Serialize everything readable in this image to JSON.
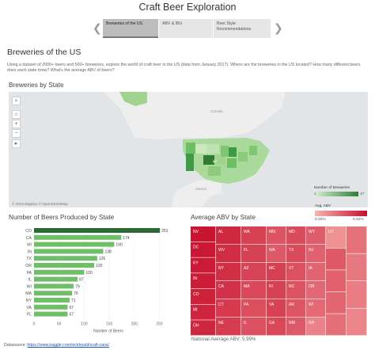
{
  "app": {
    "title": "Craft Beer Exploration"
  },
  "story": {
    "tabs": [
      {
        "label": "Breweries of the US",
        "active": true
      },
      {
        "label": "ABV & IBU",
        "active": false
      },
      {
        "label": "Beer Style Recommendations",
        "active": false
      }
    ]
  },
  "page": {
    "title": "Breweries of the US",
    "description": "Using a dataset of 2000+ beers and 500+ breweries, explore the world of craft beer in the US (data from January 2017). Where are the breweries in the US located? How many different beers does each state brew? What's the average ABV of beers?"
  },
  "map": {
    "title": "Breweries by State",
    "credit": "© 2019 Mapbox © OpenStreetMap",
    "labels": {
      "canada": "Canada",
      "mexico": "Mexico"
    },
    "highlight_value": "47",
    "tools": [
      "search-icon",
      "home-icon",
      "plus-icon",
      "minus-icon",
      "arrow-icon"
    ],
    "legend_breweries": {
      "title": "Number of Breweries",
      "min": "1",
      "max": "47",
      "color_low": "#cfe8c7",
      "color_high": "#2e7d32"
    },
    "legend_abv": {
      "title": "Avg. ABV",
      "min": "5.20%",
      "max": "6.62%",
      "color_low": "#f9b3ad",
      "color_high": "#c8102e"
    }
  },
  "bar_chart": {
    "title": "Number of Beers Produced by State",
    "xlabel": "Number of Beers",
    "states": [
      "CO",
      "CA",
      "MI",
      "IN",
      "TX",
      "OR",
      "PA",
      "IL",
      "WI",
      "MA",
      "NY",
      "VA",
      "FL"
    ],
    "values": [
      251,
      174,
      160,
      138,
      126,
      120,
      100,
      87,
      79,
      76,
      71,
      67,
      67
    ],
    "xticks": [
      0,
      50,
      100,
      150,
      200,
      250
    ],
    "xlim": [
      0,
      265
    ],
    "top_color": "#2e6b34",
    "bar_color": "#6fbf68"
  },
  "chart_data": {
    "type": "bar",
    "orientation": "horizontal",
    "title": "Number of Beers Produced by State",
    "xlabel": "Number of Beers",
    "categories": [
      "CO",
      "CA",
      "MI",
      "IN",
      "TX",
      "OR",
      "PA",
      "IL",
      "WI",
      "MA",
      "NY",
      "VA",
      "FL"
    ],
    "values": [
      251,
      174,
      160,
      138,
      126,
      120,
      100,
      87,
      79,
      76,
      71,
      67,
      67
    ],
    "xlim": [
      0,
      265
    ]
  },
  "treemap": {
    "title": "Average ABV by State",
    "national_avg": "National Average ABV: 5.99%",
    "cells": [
      {
        "label": "NV",
        "shade": 0.97
      },
      {
        "label": "DC",
        "shade": 0.96
      },
      {
        "label": "KY",
        "shade": 0.94
      },
      {
        "label": "IN",
        "shade": 0.92
      },
      {
        "label": "CO",
        "shade": 0.9
      },
      {
        "label": "MI",
        "shade": 0.88
      },
      {
        "label": "OH",
        "shade": 0.86
      },
      {
        "label": "AL",
        "shade": 0.85
      },
      {
        "label": "WV",
        "shade": 0.83
      },
      {
        "label": "NY",
        "shade": 0.81
      },
      {
        "label": "CA",
        "shade": 0.79
      },
      {
        "label": "CT",
        "shade": 0.74
      },
      {
        "label": "NE",
        "shade": 0.73
      },
      {
        "label": "WA",
        "shade": 0.7
      },
      {
        "label": "FL",
        "shade": 0.7
      },
      {
        "label": "AZ",
        "shade": 0.68
      },
      {
        "label": "MA",
        "shade": 0.65
      },
      {
        "label": "PA",
        "shade": 0.62
      },
      {
        "label": "IL",
        "shade": 0.6
      },
      {
        "label": "MN",
        "shade": 0.58
      },
      {
        "label": "WA",
        "shade": 0.55
      },
      {
        "label": "MC",
        "shade": 0.72
      },
      {
        "label": "RI",
        "shade": 0.7
      },
      {
        "label": "VA",
        "shade": 0.69
      },
      {
        "label": "GA",
        "shade": 0.66
      },
      {
        "label": "MD",
        "shade": 0.64
      },
      {
        "label": "TX",
        "shade": 0.63
      },
      {
        "label": "VT",
        "shade": 0.6
      },
      {
        "label": "NC",
        "shade": 0.59
      },
      {
        "label": "AR",
        "shade": 0.57
      },
      {
        "label": "NM",
        "shade": 0.55
      },
      {
        "label": "WY",
        "shade": 0.53
      },
      {
        "label": "NJ",
        "shade": 0.5
      },
      {
        "label": "IA",
        "shade": 0.48
      },
      {
        "label": "OR",
        "shade": 0.46
      },
      {
        "label": "WI",
        "shade": 0.45
      },
      {
        "label": "NH",
        "shade": 0.3
      },
      {
        "label": "UT",
        "shade": 0.2
      },
      {
        "label": "",
        "shade": 0.55
      },
      {
        "label": "",
        "shade": 0.5
      },
      {
        "label": "",
        "shade": 0.47
      },
      {
        "label": "",
        "shade": 0.42
      },
      {
        "label": "",
        "shade": 0.4
      },
      {
        "label": "",
        "shade": 0.36
      },
      {
        "label": "",
        "shade": 0.33
      },
      {
        "label": "",
        "shade": 0.28
      }
    ]
  },
  "footer": {
    "prefix": "Datasource: ",
    "link": "https://www.kaggle.com/nickhould/craft-cans/"
  }
}
